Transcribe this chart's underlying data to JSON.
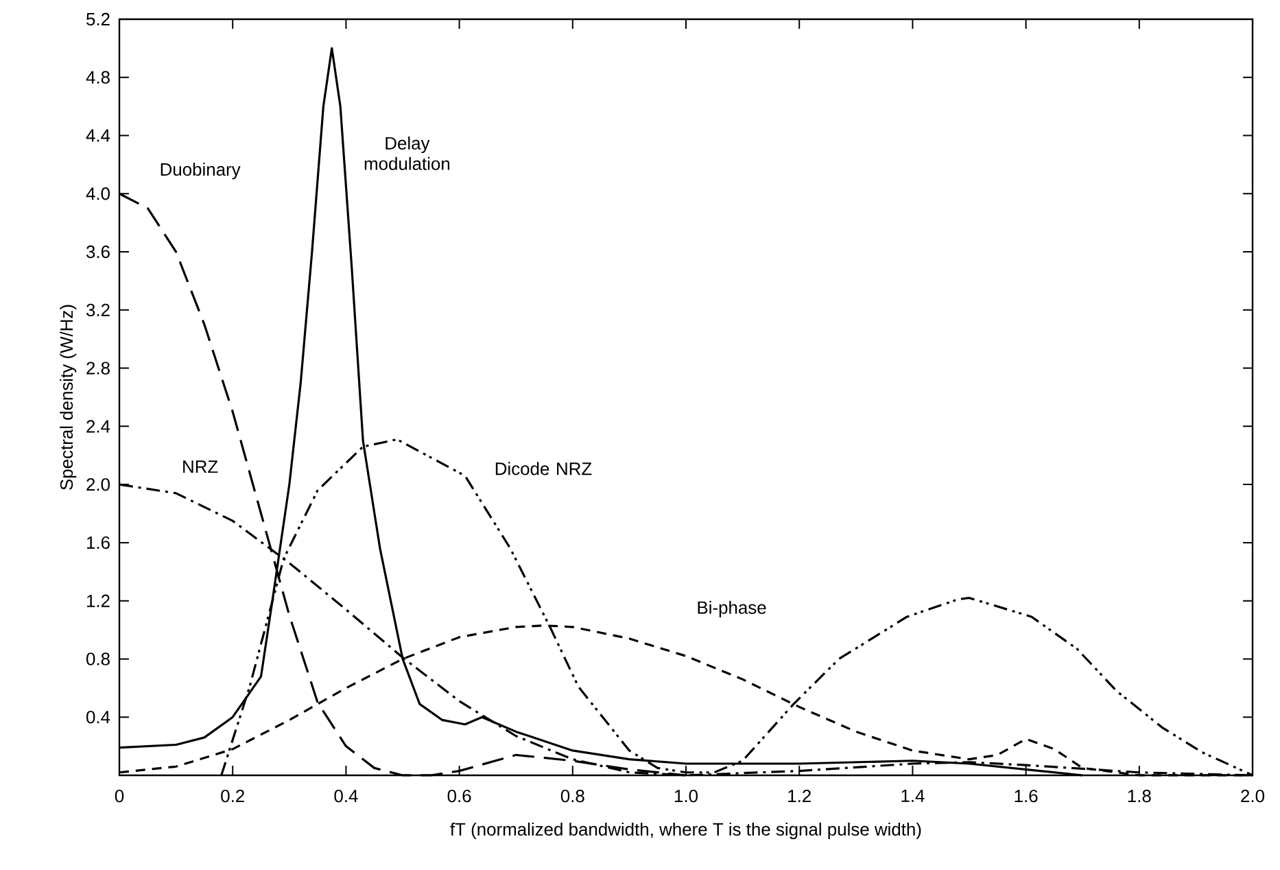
{
  "chart_data": {
    "type": "line",
    "xlabel": "fT (normalized bandwidth, where T is the signal pulse width)",
    "ylabel": "Spectral density (W/Hz)",
    "xlim": [
      0,
      2.0
    ],
    "ylim": [
      0,
      5.2
    ],
    "xticks": [
      0,
      0.2,
      0.4,
      0.6,
      0.8,
      {
        "value": 1.0,
        "label": "1.0"
      },
      1.2,
      1.4,
      1.6,
      1.8,
      {
        "value": 2.0,
        "label": "2.0"
      }
    ],
    "yticks": [
      0.4,
      0.8,
      1.2,
      1.6,
      {
        "value": 2.0,
        "label": "2.0"
      },
      2.4,
      2.8,
      3.2,
      3.6,
      {
        "value": 4.0,
        "label": "4.0"
      },
      4.4,
      4.8,
      5.2
    ],
    "series": [
      {
        "name": "Duobinary",
        "color": "#000000",
        "line_style": "long dashed",
        "x": [
          0,
          0.05,
          0.1,
          0.15,
          0.2,
          0.25,
          0.3,
          0.35,
          0.4,
          0.45,
          0.5,
          0.55,
          0.6,
          0.7,
          0.8,
          0.9,
          1.0
        ],
        "values": [
          4.0,
          3.9,
          3.6,
          3.1,
          2.5,
          1.8,
          1.1,
          0.5,
          0.2,
          0.05,
          0.0,
          0.0,
          0.03,
          0.14,
          0.1,
          0.04,
          0.0
        ]
      },
      {
        "name": "Delay modulation",
        "color": "#000000",
        "line_style": "solid",
        "x": [
          0,
          0.1,
          0.15,
          0.2,
          0.25,
          0.27,
          0.3,
          0.32,
          0.34,
          0.36,
          0.375,
          0.39,
          0.41,
          0.43,
          0.46,
          0.5,
          0.53,
          0.57,
          0.61,
          0.64,
          0.7,
          0.8,
          0.9,
          1.0,
          1.2,
          1.4,
          1.5,
          1.6,
          1.7
        ],
        "values": [
          0.19,
          0.21,
          0.26,
          0.4,
          0.68,
          1.2,
          2.0,
          2.7,
          3.6,
          4.6,
          5.0,
          4.6,
          3.5,
          2.3,
          1.56,
          0.8,
          0.49,
          0.38,
          0.35,
          0.4,
          0.3,
          0.17,
          0.11,
          0.08,
          0.08,
          0.1,
          0.08,
          0.04,
          0.0
        ]
      },
      {
        "name": "NRZ",
        "color": "#000000",
        "line_style": "dashdot",
        "x": [
          0,
          0.1,
          0.2,
          0.3,
          0.4,
          0.5,
          0.6,
          0.7,
          0.8,
          0.9,
          1.0,
          1.2,
          1.4,
          1.5,
          1.6,
          1.8,
          2.0
        ],
        "values": [
          2.0,
          1.94,
          1.75,
          1.46,
          1.14,
          0.81,
          0.51,
          0.27,
          0.11,
          0.02,
          0.0,
          0.03,
          0.08,
          0.09,
          0.07,
          0.02,
          0.0
        ]
      },
      {
        "name": "Dicode NRZ",
        "color": "#000000",
        "line_style": "dashdotdot",
        "x": [
          0.18,
          0.23,
          0.29,
          0.35,
          0.43,
          0.49,
          0.61,
          0.69,
          0.76,
          0.81,
          0.9,
          0.95,
          1.0,
          1.05,
          1.1,
          1.19,
          1.27,
          1.39,
          1.48,
          1.5,
          1.61,
          1.69,
          1.76,
          1.84,
          1.91,
          2.0
        ],
        "values": [
          0.0,
          0.61,
          1.49,
          1.96,
          2.26,
          2.31,
          2.06,
          1.56,
          1.02,
          0.61,
          0.17,
          0.05,
          0.02,
          0.02,
          0.1,
          0.49,
          0.8,
          1.09,
          1.21,
          1.22,
          1.09,
          0.87,
          0.58,
          0.33,
          0.16,
          0.0
        ]
      },
      {
        "name": "Bi-phase",
        "color": "#000000",
        "line_style": "dashed",
        "x": [
          0,
          0.1,
          0.2,
          0.3,
          0.4,
          0.5,
          0.6,
          0.7,
          0.75,
          0.8,
          0.9,
          1.0,
          1.1,
          1.2,
          1.3,
          1.4,
          1.5,
          1.55,
          1.6,
          1.65,
          1.7,
          1.8,
          2.0
        ],
        "values": [
          0.02,
          0.06,
          0.18,
          0.38,
          0.6,
          0.8,
          0.95,
          1.02,
          1.03,
          1.02,
          0.94,
          0.82,
          0.66,
          0.47,
          0.3,
          0.17,
          0.11,
          0.14,
          0.25,
          0.18,
          0.05,
          0.0,
          0.0
        ]
      }
    ]
  }
}
